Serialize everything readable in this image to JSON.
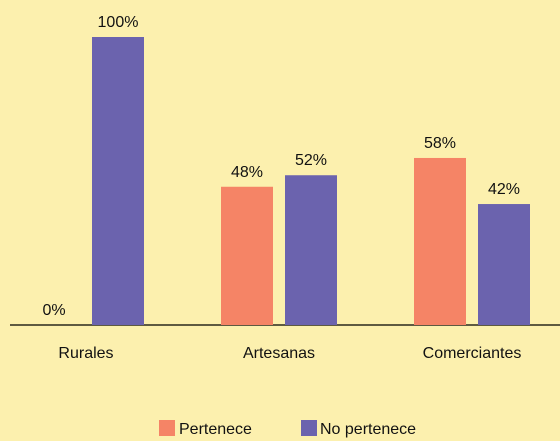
{
  "chart_data": {
    "type": "bar",
    "categories": [
      "Rurales",
      "Artesanas",
      "Comerciantes"
    ],
    "series": [
      {
        "name": "Pertenece",
        "values": [
          0,
          48,
          58
        ],
        "labels": [
          "0%",
          "48%",
          "58%"
        ],
        "color": "#F58466"
      },
      {
        "name": "No pertenece",
        "values": [
          100,
          52,
          42
        ],
        "labels": [
          "100%",
          "52%",
          "42%"
        ],
        "color": "#6B63AE"
      }
    ],
    "ylim": [
      0,
      100
    ],
    "grid": false,
    "legend_position": "bottom-center",
    "background": "#FCF0AE",
    "axis_color": "#000000",
    "title": "",
    "xlabel": "",
    "ylabel": ""
  }
}
